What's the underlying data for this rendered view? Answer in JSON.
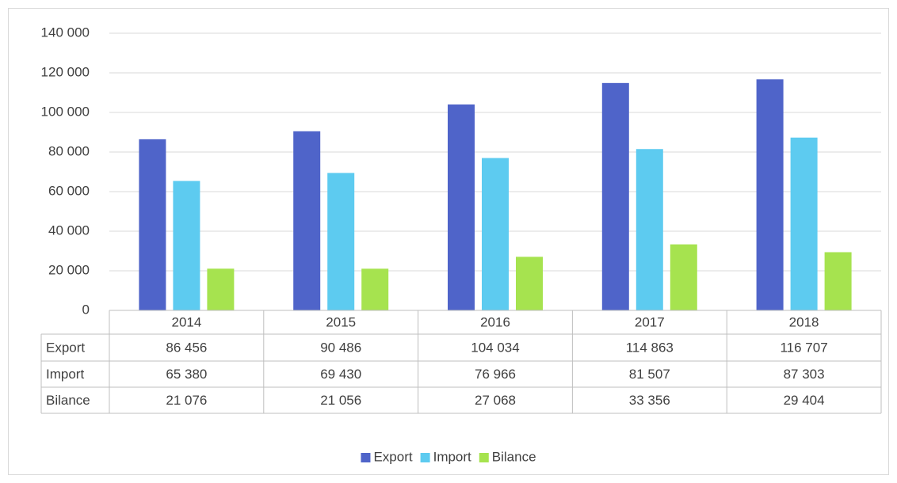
{
  "chart_data": {
    "type": "bar",
    "categories": [
      "2014",
      "2015",
      "2016",
      "2017",
      "2018"
    ],
    "series": [
      {
        "name": "Export",
        "color": "#4f64c9",
        "values": [
          86456,
          90486,
          104034,
          114863,
          116707
        ],
        "value_labels": [
          "86 456",
          "90 486",
          "104 034",
          "114 863",
          "116 707"
        ]
      },
      {
        "name": "Import",
        "color": "#5dcbf0",
        "values": [
          65380,
          69430,
          76966,
          81507,
          87303
        ],
        "value_labels": [
          "65 380",
          "69 430",
          "76 966",
          "81 507",
          "87 303"
        ]
      },
      {
        "name": "Bilance",
        "color": "#a6e34f",
        "values": [
          21076,
          21056,
          27068,
          33356,
          29404
        ],
        "value_labels": [
          "21 076",
          "21 056",
          "27 068",
          "33 356",
          "29 404"
        ]
      }
    ],
    "ylim": [
      0,
      140000
    ],
    "yticks": [
      0,
      {
        "value": 20000,
        "label": "20 000"
      },
      {
        "value": 40000,
        "label": "40 000"
      },
      {
        "value": 60000,
        "label": "60 000"
      },
      {
        "value": 80000,
        "label": "80 000"
      },
      {
        "value": 100000,
        "label": "100 000"
      },
      {
        "value": 120000,
        "label": "120 000"
      },
      {
        "value": 140000,
        "label": "140 000"
      }
    ],
    "grid": true,
    "legend": "bottom",
    "data_table": true
  }
}
